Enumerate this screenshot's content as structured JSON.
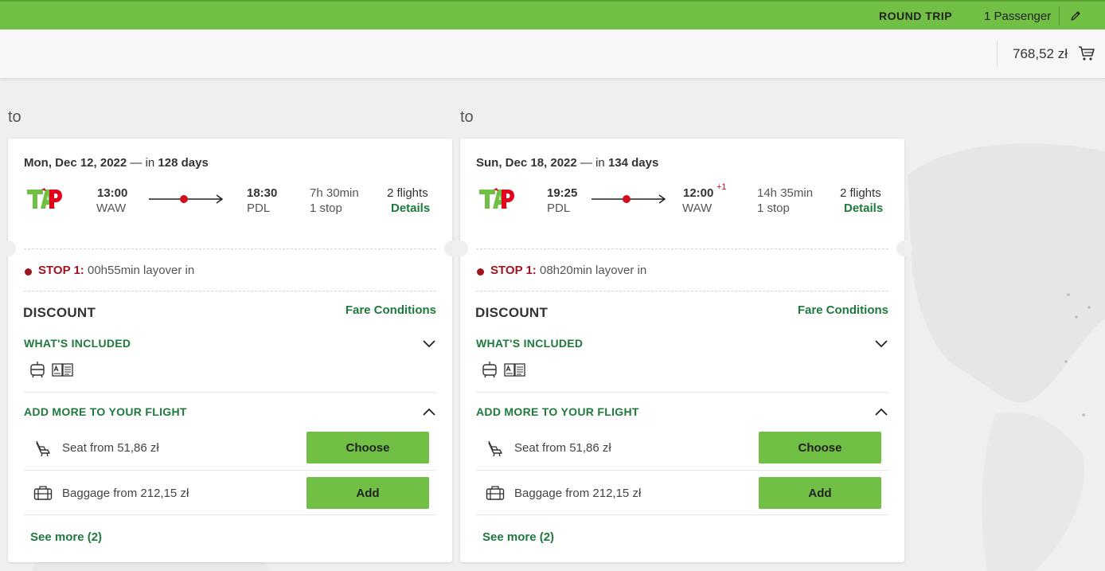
{
  "header": {
    "trip_type": "ROUND TRIP",
    "passengers": "1 Passenger",
    "edit_icon": "pencil-icon"
  },
  "cart": {
    "total": "768,52 zł",
    "icon": "cart-icon"
  },
  "columns": [
    {
      "to_label": "to",
      "date": "Mon, Dec 12, 2022",
      "in_prefix": " — in ",
      "in_days": "128 days",
      "airline_logo": "TAP",
      "departure": {
        "time": "13:00",
        "code": "WAW"
      },
      "arrival": {
        "time": "18:30",
        "code": "PDL",
        "plus_day": ""
      },
      "duration": "7h 30min",
      "stops": "1 stop",
      "flights": "2 flights",
      "details_label": "Details",
      "stop_label": "STOP 1:",
      "stop_info": " 00h55min layover in",
      "fare_name": "DISCOUNT",
      "fare_conditions": "Fare Conditions",
      "included_title": "WHAT'S INCLUDED",
      "addmore_title": "ADD MORE TO YOUR FLIGHT",
      "seat_text": "Seat from 51,86 zł",
      "choose_label": "Choose",
      "baggage_text": "Baggage from 212,15 zł",
      "add_label": "Add",
      "see_more": "See more (2)"
    },
    {
      "to_label": "to",
      "date": "Sun, Dec 18, 2022",
      "in_prefix": " — in ",
      "in_days": "134 days",
      "airline_logo": "TAP",
      "departure": {
        "time": "19:25",
        "code": "PDL"
      },
      "arrival": {
        "time": "12:00",
        "code": "WAW",
        "plus_day": "+1"
      },
      "duration": "14h 35min",
      "stops": "1 stop",
      "flights": "2 flights",
      "details_label": "Details",
      "stop_label": "STOP 1:",
      "stop_info": " 08h20min layover in",
      "fare_name": "DISCOUNT",
      "fare_conditions": "Fare Conditions",
      "included_title": "WHAT'S INCLUDED",
      "addmore_title": "ADD MORE TO YOUR FLIGHT",
      "seat_text": "Seat from 51,86 zł",
      "choose_label": "Choose",
      "baggage_text": "Baggage from 212,15 zł",
      "add_label": "Add",
      "see_more": "See more (2)"
    }
  ],
  "colors": {
    "brand_green": "#71bf44",
    "link_green": "#1e7a3c",
    "stop_red": "#a0141e"
  }
}
